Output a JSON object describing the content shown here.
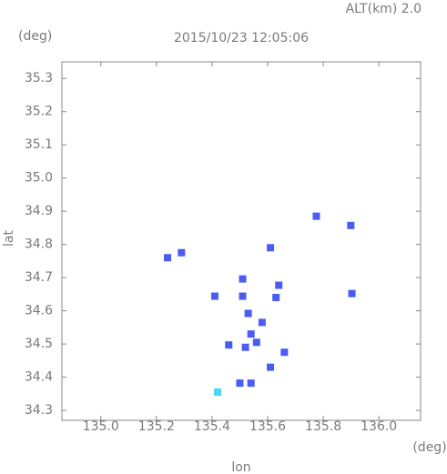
{
  "chart_data": {
    "type": "scatter",
    "title": "2015/10/23 12:05:06",
    "annotation": "ALT(km) 2.0",
    "y_unit": "(deg)",
    "x_unit": "(deg)",
    "xlabel": "lon",
    "ylabel": "lat",
    "xlim": [
      134.86,
      136.15
    ],
    "ylim": [
      34.27,
      35.35
    ],
    "xticks": [
      {
        "value": 135,
        "label": "135.0"
      },
      135.2,
      135.4,
      135.6,
      135.8,
      {
        "value": 136,
        "label": "136.0"
      }
    ],
    "yticks": [
      34.3,
      34.4,
      34.5,
      34.6,
      34.7,
      34.8,
      34.9,
      {
        "value": 35,
        "label": "35.0"
      },
      35.1,
      35.2,
      35.3
    ],
    "grid": false,
    "series": [
      {
        "color": "#4a5cf2",
        "x": [
          135.775,
          135.899,
          135.24,
          135.29,
          135.61,
          135.51,
          135.64,
          135.41,
          135.51,
          135.903,
          135.53,
          135.58,
          135.54,
          135.46,
          135.52,
          135.56,
          135.66,
          135.61,
          135.5,
          135.54,
          135.63
        ],
        "values": [
          34.885,
          34.857,
          34.76,
          34.775,
          34.79,
          34.696,
          34.677,
          34.644,
          34.644,
          34.652,
          34.592,
          34.565,
          34.53,
          34.497,
          34.49,
          34.505,
          34.475,
          34.43,
          34.382,
          34.382,
          34.64
        ]
      },
      {
        "color": "#4fd6f0",
        "x": [
          135.42
        ],
        "values": [
          34.355
        ]
      }
    ]
  }
}
